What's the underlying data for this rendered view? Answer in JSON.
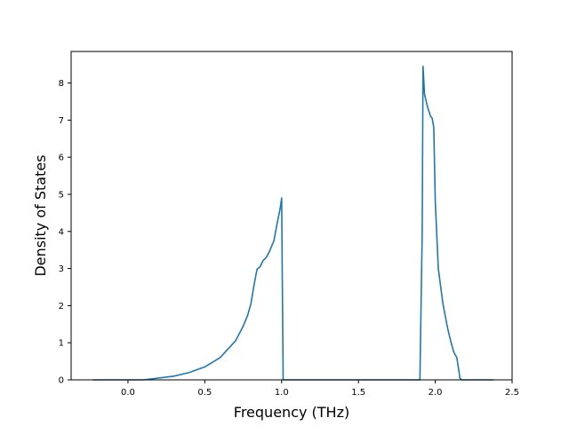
{
  "chart_data": {
    "type": "line",
    "title": "",
    "xlabel": "Frequency (THz)",
    "ylabel": "Density of States",
    "xlim": [
      -0.37,
      2.5
    ],
    "ylim": [
      0,
      8.85
    ],
    "xticks": [
      0.0,
      0.5,
      1.0,
      1.5,
      2.0,
      2.5
    ],
    "xtick_labels": [
      "0.0",
      "0.5",
      "1.0",
      "1.5",
      "2.0",
      "2.5"
    ],
    "yticks": [
      0,
      1,
      2,
      3,
      4,
      5,
      6,
      7,
      8
    ],
    "ytick_labels": [
      "0",
      "1",
      "2",
      "3",
      "4",
      "5",
      "6",
      "7",
      "8"
    ],
    "grid": false,
    "legend": false,
    "line_color": "#1f77b4",
    "series": [
      {
        "x": [
          -0.23,
          0.0,
          0.1,
          0.2,
          0.3,
          0.4,
          0.5,
          0.6,
          0.7,
          0.75,
          0.78,
          0.8,
          0.82,
          0.84,
          0.86,
          0.88,
          0.9,
          0.92,
          0.95,
          0.97,
          0.99,
          1.0,
          1.005,
          1.01,
          1.5,
          1.9,
          1.915,
          1.92,
          1.93,
          1.95,
          1.97,
          1.98,
          1.99,
          2.0,
          2.02,
          2.05,
          2.08,
          2.1,
          2.12,
          2.14,
          2.155,
          2.16,
          2.17,
          2.38
        ],
        "y": [
          0.0,
          0.0,
          0.0,
          0.05,
          0.1,
          0.2,
          0.35,
          0.6,
          1.05,
          1.45,
          1.75,
          2.05,
          2.55,
          2.98,
          3.05,
          3.22,
          3.3,
          3.45,
          3.75,
          4.2,
          4.6,
          4.9,
          2.5,
          0.0,
          0.0,
          0.0,
          4.0,
          8.45,
          7.7,
          7.35,
          7.1,
          7.05,
          6.8,
          4.8,
          3.0,
          2.05,
          1.4,
          1.05,
          0.75,
          0.6,
          0.2,
          0.05,
          0.0,
          0.0
        ]
      }
    ]
  }
}
